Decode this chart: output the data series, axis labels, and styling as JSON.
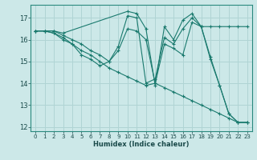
{
  "xlabel": "Humidex (Indice chaleur)",
  "bg_color": "#cce8e8",
  "grid_color": "#b0d4d4",
  "line_color": "#1a7a6e",
  "xlim": [
    -0.5,
    23.5
  ],
  "ylim": [
    11.8,
    17.6
  ],
  "yticks": [
    12,
    13,
    14,
    15,
    16,
    17
  ],
  "xticks": [
    0,
    1,
    2,
    3,
    4,
    5,
    6,
    7,
    8,
    9,
    10,
    11,
    12,
    13,
    14,
    15,
    16,
    17,
    18,
    19,
    20,
    21,
    22,
    23
  ],
  "lines": [
    {
      "x": [
        0,
        1,
        2,
        3,
        10,
        11,
        12,
        13,
        14,
        15,
        16,
        17,
        18,
        19,
        20,
        21,
        22,
        23
      ],
      "y": [
        16.4,
        16.4,
        16.4,
        16.3,
        17.3,
        17.2,
        16.5,
        13.9,
        16.6,
        16.0,
        16.9,
        17.2,
        16.6,
        16.6,
        16.6,
        16.6,
        16.6,
        16.6
      ]
    },
    {
      "x": [
        0,
        1,
        2,
        3,
        4,
        5,
        6,
        7,
        8,
        9,
        10,
        11,
        12,
        13,
        14,
        15,
        16,
        17,
        18,
        19,
        20,
        21,
        22,
        23
      ],
      "y": [
        16.4,
        16.4,
        16.4,
        16.2,
        16.0,
        15.8,
        15.5,
        15.3,
        15.0,
        15.5,
        16.5,
        16.4,
        16.0,
        14.0,
        15.8,
        15.6,
        15.3,
        16.8,
        16.6,
        15.1,
        13.9,
        12.6,
        12.2,
        12.2
      ]
    },
    {
      "x": [
        0,
        1,
        2,
        3,
        4,
        5,
        6,
        7,
        8,
        9,
        10,
        11,
        12,
        13,
        14,
        15,
        16,
        17,
        18,
        19,
        20,
        21,
        22,
        23
      ],
      "y": [
        16.4,
        16.4,
        16.3,
        16.1,
        15.8,
        15.5,
        15.3,
        15.0,
        14.7,
        14.5,
        14.3,
        14.1,
        13.9,
        14.0,
        13.8,
        13.6,
        13.4,
        13.2,
        13.0,
        12.8,
        12.6,
        12.4,
        12.2,
        12.2
      ]
    },
    {
      "x": [
        0,
        1,
        2,
        3,
        4,
        5,
        6,
        7,
        8,
        9,
        10,
        11,
        12,
        13,
        14,
        15,
        16,
        17,
        18,
        19,
        20,
        21,
        22,
        23
      ],
      "y": [
        16.4,
        16.4,
        16.3,
        16.0,
        15.8,
        15.3,
        15.1,
        14.8,
        15.0,
        15.7,
        17.1,
        17.0,
        14.0,
        14.2,
        16.1,
        15.8,
        16.5,
        17.0,
        16.6,
        15.2,
        13.9,
        12.6,
        12.2,
        12.2
      ]
    }
  ]
}
